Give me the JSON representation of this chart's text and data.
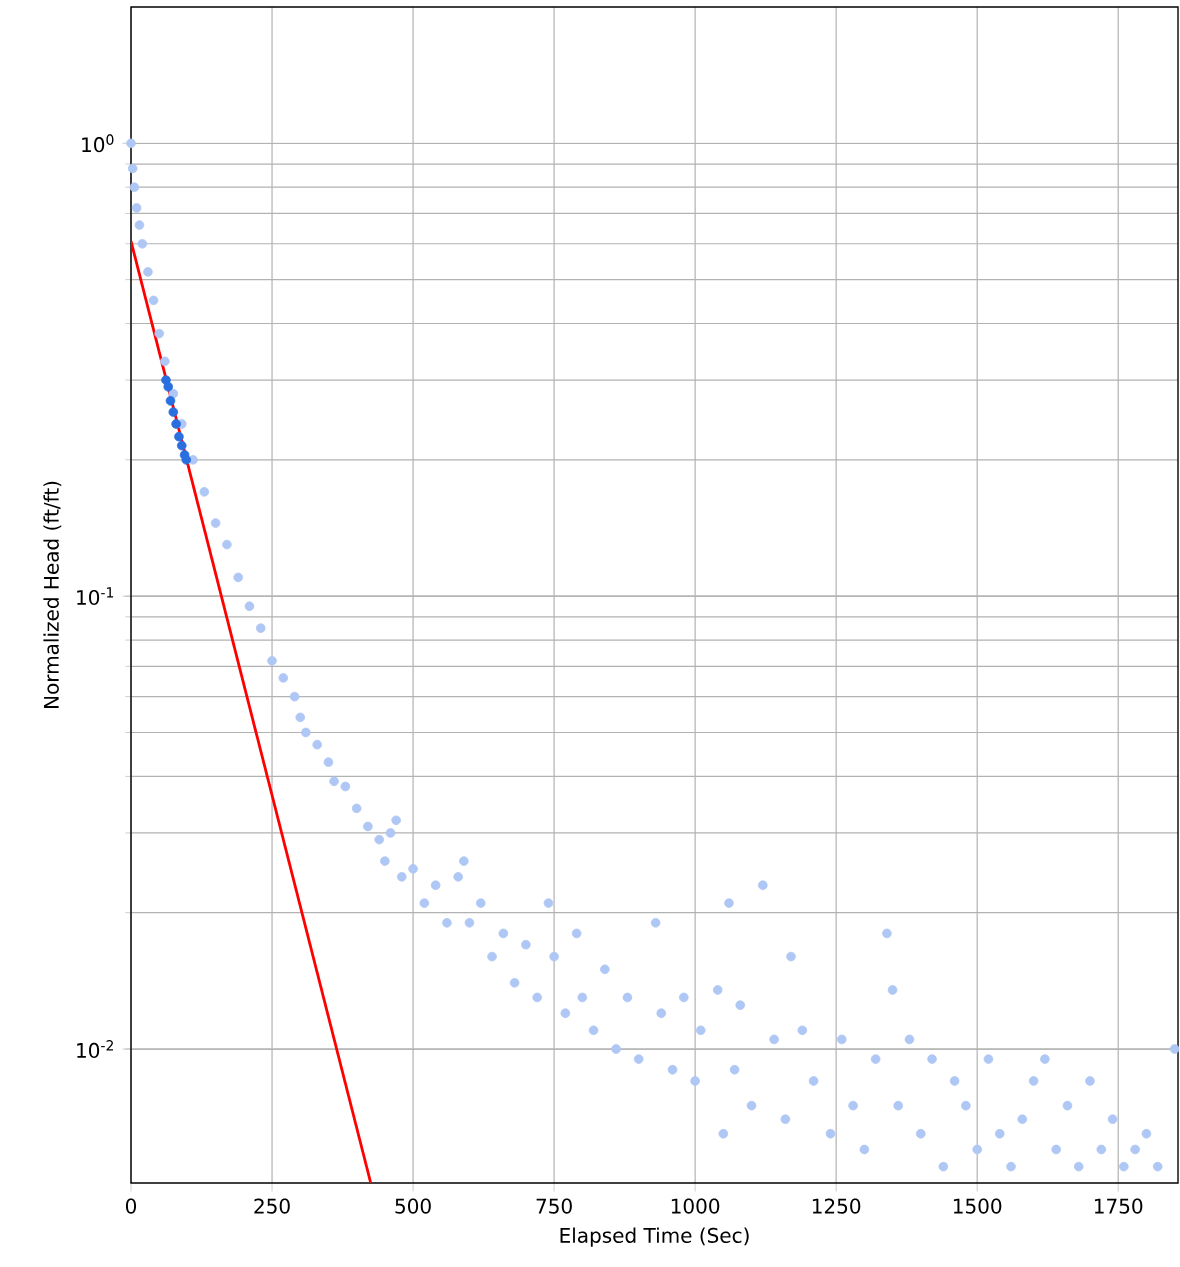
{
  "chart_data": {
    "type": "scatter",
    "xlabel": "Elapsed Time (Sec)",
    "ylabel": "Normalized Head (ft/ft)",
    "log": "y",
    "grid": true,
    "marker": "circle",
    "xlim": [
      0,
      1856
    ],
    "ylim": [
      0.00506,
      2.0
    ],
    "xticks": [
      0,
      250,
      500,
      750,
      1000,
      1250,
      1500,
      1750
    ],
    "yticks": [
      {
        "value": 0.01,
        "label": "10$^{-2}$"
      },
      {
        "value": 0.1,
        "label": "10$^{-1}$"
      },
      {
        "value": 1,
        "label": "10$^{0}$"
      }
    ],
    "series": [
      {
        "color": "#aec7f5",
        "x": [
          0,
          3,
          6,
          10,
          15,
          20,
          30,
          40,
          50,
          60,
          75,
          90,
          110,
          130,
          150,
          170,
          190,
          210,
          230,
          250,
          270,
          290,
          300,
          310,
          330,
          350,
          360,
          380,
          400,
          420,
          440,
          450,
          460,
          470,
          480,
          500,
          520,
          540,
          560,
          580,
          590,
          600,
          620,
          640,
          660,
          680,
          700,
          720,
          740,
          750,
          770,
          790,
          800,
          820,
          840,
          860,
          880,
          900,
          930,
          940,
          960,
          980,
          1000,
          1010,
          1040,
          1050,
          1060,
          1070,
          1080,
          1100,
          1120,
          1140,
          1160,
          1170,
          1190,
          1210,
          1240,
          1260,
          1280,
          1300,
          1320,
          1340,
          1350,
          1360,
          1380,
          1400,
          1420,
          1440,
          1460,
          1480,
          1500,
          1520,
          1540,
          1560,
          1580,
          1600,
          1620,
          1640,
          1660,
          1680,
          1700,
          1720,
          1740,
          1760,
          1780,
          1800,
          1820,
          1850
        ],
        "values": [
          1.0,
          0.88,
          0.8,
          0.72,
          0.66,
          0.6,
          0.52,
          0.45,
          0.38,
          0.33,
          0.28,
          0.24,
          0.2,
          0.17,
          0.145,
          0.13,
          0.11,
          0.095,
          0.085,
          0.072,
          0.066,
          0.06,
          0.054,
          0.05,
          0.047,
          0.043,
          0.039,
          0.038,
          0.034,
          0.031,
          0.029,
          0.026,
          0.03,
          0.032,
          0.024,
          0.025,
          0.021,
          0.023,
          0.019,
          0.024,
          0.026,
          0.019,
          0.021,
          0.016,
          0.018,
          0.014,
          0.017,
          0.013,
          0.021,
          0.016,
          0.012,
          0.018,
          0.013,
          0.011,
          0.015,
          0.01,
          0.013,
          0.0095,
          0.019,
          0.012,
          0.009,
          0.013,
          0.0085,
          0.011,
          0.0135,
          0.0065,
          0.021,
          0.009,
          0.0125,
          0.0075,
          0.023,
          0.0105,
          0.007,
          0.016,
          0.011,
          0.0085,
          0.0065,
          0.0105,
          0.0075,
          0.006,
          0.0095,
          0.018,
          0.0135,
          0.0075,
          0.0105,
          0.0065,
          0.0095,
          0.0055,
          0.0085,
          0.0075,
          0.006,
          0.0095,
          0.0065,
          0.0055,
          0.007,
          0.0085,
          0.0095,
          0.006,
          0.0075,
          0.0055,
          0.0085,
          0.006,
          0.007,
          0.0055,
          0.006,
          0.0065,
          0.0055,
          0.01
        ]
      },
      {
        "color": "#2a6fe0",
        "x": [
          62,
          66,
          70,
          75,
          80,
          85,
          90,
          95,
          98
        ],
        "values": [
          0.3,
          0.29,
          0.27,
          0.255,
          0.24,
          0.225,
          0.215,
          0.205,
          0.2
        ]
      },
      {
        "type": "line",
        "marker": "none",
        "color": "#ff0000",
        "x": [
          0,
          425
        ],
        "values": [
          0.608,
          0.00506
        ]
      }
    ]
  }
}
